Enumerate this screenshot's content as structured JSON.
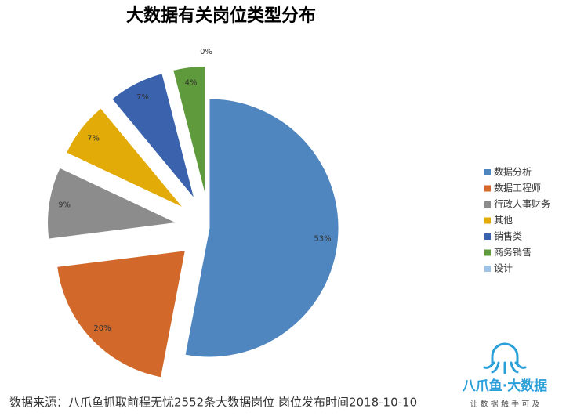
{
  "chart_data": {
    "type": "pie",
    "title": "大数据有关岗位类型分布",
    "categories": [
      "数据分析",
      "数据工程师",
      "行政人事财务",
      "其他",
      "销售类",
      "商务销售",
      "设计"
    ],
    "values": [
      53,
      20,
      9,
      7,
      7,
      4,
      0
    ],
    "value_labels": [
      "53%",
      "20%",
      "9%",
      "7%",
      "7%",
      "4%",
      "0%"
    ],
    "colors": [
      "#4f86bf",
      "#d2692b",
      "#8c8c8c",
      "#e3ab07",
      "#3a62ad",
      "#5f9a3c",
      "#9fc2e5"
    ],
    "legend": "right"
  },
  "footer": {
    "source": "数据来源：八爪鱼抓取前程无忧2552条大数据岗位  岗位发布时间2018-10-10",
    "logo_title": "八爪鱼·大数据",
    "logo_subtitle": "让 数 据 触 手 可 及"
  }
}
